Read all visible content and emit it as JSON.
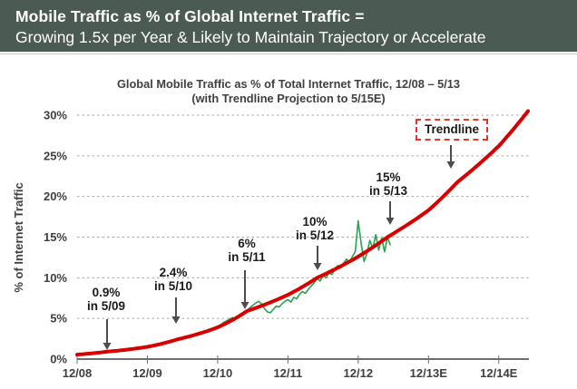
{
  "header": {
    "title_line1": "Mobile Traffic as % of Global Internet Traffic =",
    "title_line2": "Growing 1.5x per Year & Likely to Maintain Trajectory or Accelerate"
  },
  "chart_data": {
    "type": "line",
    "title": "Global Mobile Traffic as % of Total Internet Traffic, 12/08 – 5/13",
    "subtitle": "(with Trendline Projection to 5/15E)",
    "ylabel": "% of Internet Traffic",
    "ylim": [
      0,
      30
    ],
    "ytick_values": [
      0,
      5,
      10,
      15,
      20,
      25,
      30
    ],
    "ytick_labels": [
      "0%",
      "5%",
      "10%",
      "15%",
      "20%",
      "25%",
      "30%"
    ],
    "xtick_months": [
      0,
      12,
      24,
      36,
      48,
      60,
      72
    ],
    "xtick_labels": [
      "12/08",
      "12/09",
      "12/10",
      "12/11",
      "12/12",
      "12/13E",
      "12/14E"
    ],
    "x_months_range": [
      0,
      77
    ],
    "grid": "horizontal-dashed",
    "legend": "none",
    "trendline_label": "Trendline",
    "series": [
      {
        "name": "actual-mobile-traffic-share",
        "color": "#2aa14c",
        "start_month": 0,
        "step_months": 0.5,
        "values": [
          0.6,
          0.63,
          0.61,
          0.65,
          0.68,
          0.66,
          0.7,
          0.73,
          0.76,
          0.8,
          0.9,
          0.93,
          0.96,
          1.0,
          1.04,
          1.02,
          1.1,
          1.14,
          1.19,
          1.17,
          1.25,
          1.32,
          1.4,
          1.45,
          1.55,
          1.6,
          1.66,
          1.74,
          1.8,
          1.86,
          1.95,
          2.05,
          2.16,
          2.3,
          2.45,
          2.5,
          2.6,
          2.7,
          2.82,
          2.95,
          3.05,
          3.1,
          3.22,
          3.35,
          3.5,
          3.62,
          3.76,
          3.9,
          4.05,
          4.22,
          4.5,
          4.7,
          4.9,
          5.1,
          5.0,
          5.2,
          5.5,
          5.72,
          6.0,
          6.3,
          6.6,
          6.9,
          7.1,
          6.8,
          6.2,
          5.8,
          5.7,
          6.1,
          6.5,
          6.4,
          6.8,
          7.1,
          7.3,
          7.0,
          7.6,
          7.4,
          8.0,
          8.3,
          8.1,
          8.6,
          9.0,
          9.4,
          9.9,
          9.6,
          10.3,
          10.0,
          10.6,
          10.4,
          11.0,
          11.5,
          11.2,
          11.8,
          12.3,
          11.9,
          12.6,
          13.2,
          17.0,
          14.2,
          12.0,
          13.0,
          14.6,
          13.6,
          15.3,
          13.4,
          14.9,
          13.2,
          15.0,
          14.0
        ]
      },
      {
        "name": "trendline-projection",
        "color": "#d60000",
        "points": [
          [
            0,
            0.55
          ],
          [
            5,
            0.9
          ],
          [
            12,
            1.5
          ],
          [
            17,
            2.4
          ],
          [
            24,
            3.9
          ],
          [
            29,
            5.9
          ],
          [
            36,
            7.9
          ],
          [
            41,
            10.0
          ],
          [
            48,
            12.6
          ],
          [
            53,
            15.0
          ],
          [
            60,
            18.3
          ],
          [
            65,
            21.8
          ],
          [
            72,
            26.2
          ],
          [
            77,
            30.5
          ]
        ]
      }
    ],
    "annotations": [
      {
        "label": "0.9%",
        "sublabel": "in 5/09"
      },
      {
        "label": "2.4%",
        "sublabel": "in 5/10"
      },
      {
        "label": "6%",
        "sublabel": "in 5/11"
      },
      {
        "label": "10%",
        "sublabel": "in 5/12"
      },
      {
        "label": "15%",
        "sublabel": "in 5/13"
      }
    ]
  },
  "colors": {
    "header_bg": "#4c5a54",
    "header_text": "#ffffff",
    "actual_line": "#2aa14c",
    "trend_line": "#d60000",
    "trend_box_border": "#e8352a",
    "gridline": "#a6a6a6",
    "axis": "#6e6e6e",
    "text": "#3f3f3f",
    "arrow": "#4d4d4d"
  }
}
